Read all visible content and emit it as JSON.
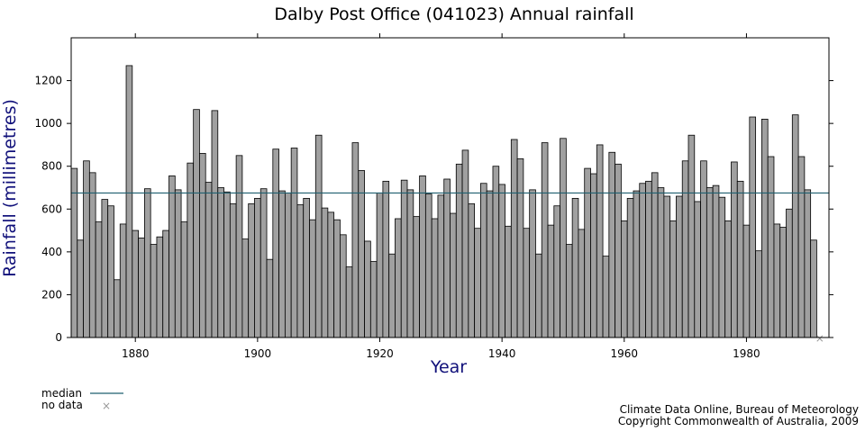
{
  "chart_data": {
    "type": "bar",
    "title": "Dalby Post Office (041023) Annual rainfall",
    "xlabel": "Year",
    "ylabel": "Rainfall (millimetres)",
    "xlim": [
      1869.5,
      1993.5
    ],
    "ylim": [
      0,
      1400
    ],
    "x_ticks": [
      1880,
      1900,
      1920,
      1940,
      1960,
      1980
    ],
    "y_ticks": [
      0,
      200,
      400,
      600,
      800,
      1000,
      1200
    ],
    "median": 675,
    "median_color": "#1f5f6f",
    "bar_color": "#a0a0a0",
    "no_data_years": [
      1992
    ],
    "years": [
      1870,
      1871,
      1872,
      1873,
      1874,
      1875,
      1876,
      1877,
      1878,
      1879,
      1880,
      1881,
      1882,
      1883,
      1884,
      1885,
      1886,
      1887,
      1888,
      1889,
      1890,
      1891,
      1892,
      1893,
      1894,
      1895,
      1896,
      1897,
      1898,
      1899,
      1900,
      1901,
      1902,
      1903,
      1904,
      1905,
      1906,
      1907,
      1908,
      1909,
      1910,
      1911,
      1912,
      1913,
      1914,
      1915,
      1916,
      1917,
      1918,
      1919,
      1920,
      1921,
      1922,
      1923,
      1924,
      1925,
      1926,
      1927,
      1928,
      1929,
      1930,
      1931,
      1932,
      1933,
      1934,
      1935,
      1936,
      1937,
      1938,
      1939,
      1940,
      1941,
      1942,
      1943,
      1944,
      1945,
      1946,
      1947,
      1948,
      1949,
      1950,
      1951,
      1952,
      1953,
      1954,
      1955,
      1956,
      1957,
      1958,
      1959,
      1960,
      1961,
      1962,
      1963,
      1964,
      1965,
      1966,
      1967,
      1968,
      1969,
      1970,
      1971,
      1972,
      1973,
      1974,
      1975,
      1976,
      1977,
      1978,
      1979,
      1980,
      1981,
      1982,
      1983,
      1984,
      1985,
      1986,
      1987,
      1988,
      1989,
      1990,
      1991
    ],
    "values": [
      790,
      455,
      825,
      770,
      540,
      645,
      615,
      270,
      530,
      1270,
      500,
      465,
      695,
      435,
      470,
      500,
      755,
      690,
      540,
      815,
      1065,
      860,
      725,
      1060,
      700,
      680,
      625,
      850,
      460,
      625,
      650,
      695,
      365,
      880,
      685,
      675,
      885,
      620,
      650,
      550,
      945,
      605,
      585,
      550,
      480,
      330,
      910,
      780,
      450,
      355,
      675,
      730,
      390,
      555,
      735,
      690,
      565,
      755,
      670,
      555,
      665,
      740,
      580,
      810,
      875,
      625,
      510,
      720,
      685,
      800,
      715,
      520,
      925,
      835,
      510,
      690,
      390,
      910,
      525,
      615,
      930,
      435,
      650,
      505,
      790,
      765,
      900,
      380,
      865,
      810,
      545,
      650,
      685,
      720,
      730,
      770,
      700,
      660,
      545,
      660,
      825,
      945,
      635,
      825,
      700,
      710,
      655,
      545,
      820,
      730,
      525,
      1030,
      405,
      1020,
      845,
      530,
      515,
      600,
      1040,
      845,
      690,
      455
    ]
  },
  "legend": {
    "median_label": "median",
    "no_data_label": "no data",
    "no_data_marker": "×"
  },
  "credits": {
    "line1": "Climate Data Online, Bureau of Meteorology",
    "line2": "Copyright Commonwealth of Australia, 2009"
  }
}
